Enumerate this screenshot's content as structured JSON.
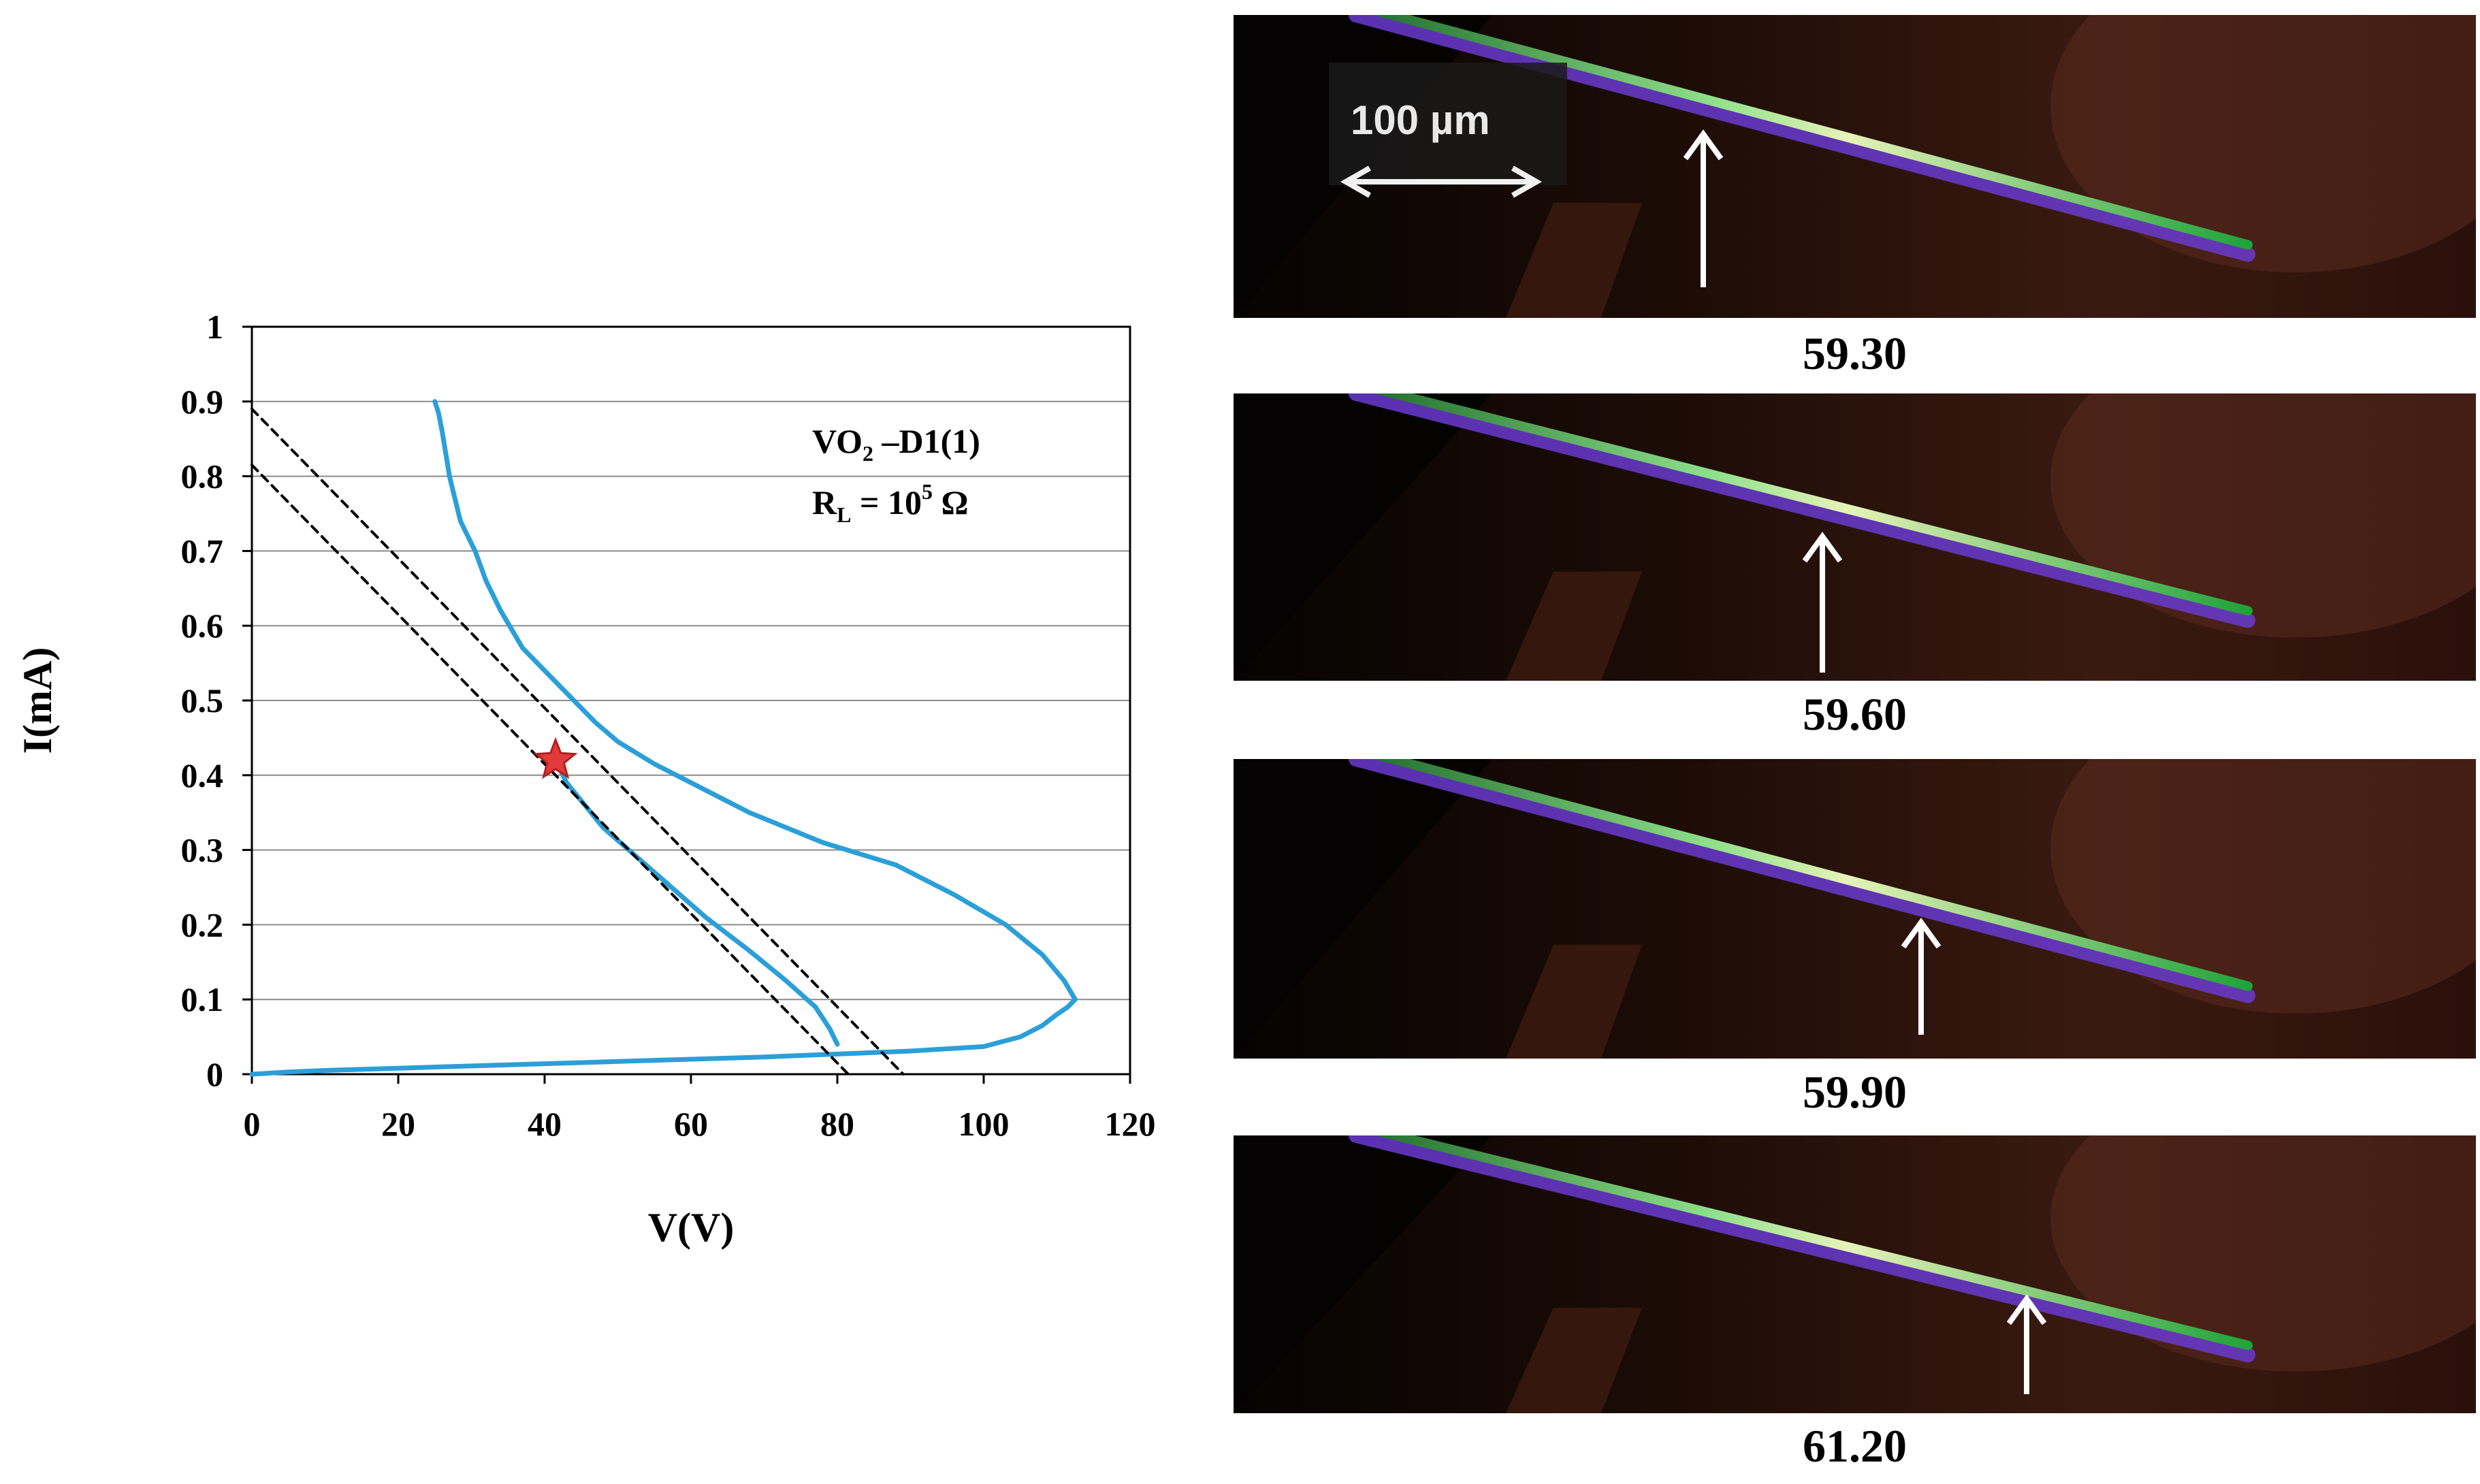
{
  "chart_data": {
    "type": "line",
    "title": "",
    "xlabel": "V(V)",
    "ylabel": "I(mA)",
    "xlim": [
      0,
      120
    ],
    "ylim": [
      0,
      1
    ],
    "x_ticks": [
      "0",
      "20",
      "40",
      "60",
      "80",
      "100",
      "120"
    ],
    "y_ticks": [
      "0",
      "0.1",
      "0.2",
      "0.3",
      "0.4",
      "0.5",
      "0.6",
      "0.7",
      "0.8",
      "0.9",
      "1"
    ],
    "grid": "horizontal",
    "annotation": {
      "line1_main": "VO",
      "line1_sub": "2",
      "line1_rest": " –D1(1)",
      "line2_main": "R",
      "line2_sub": "L",
      "line2_mid": " =  10",
      "line2_sup": "5",
      "line2_rest": " Ω"
    },
    "series": [
      {
        "name": "I-V curve",
        "color": "#2b9fd8",
        "x": [
          0,
          5,
          10,
          20,
          30,
          40,
          50,
          60,
          70,
          80,
          90,
          100,
          105,
          108,
          110,
          111.5,
          112.5,
          111,
          108,
          103,
          96,
          88,
          78,
          68,
          60,
          55,
          50,
          47,
          44,
          42,
          40,
          37,
          34,
          32,
          30.5,
          29.5,
          28.5,
          28,
          27.5,
          27,
          26.5,
          26,
          25.5,
          25
        ],
        "y": [
          0,
          0.003,
          0.005,
          0.008,
          0.011,
          0.014,
          0.017,
          0.02,
          0.023,
          0.027,
          0.031,
          0.037,
          0.05,
          0.065,
          0.08,
          0.09,
          0.1,
          0.125,
          0.16,
          0.2,
          0.24,
          0.28,
          0.31,
          0.35,
          0.39,
          0.415,
          0.445,
          0.47,
          0.5,
          0.52,
          0.54,
          0.57,
          0.62,
          0.66,
          0.7,
          0.72,
          0.74,
          0.76,
          0.78,
          0.8,
          0.83,
          0.86,
          0.885,
          0.9
        ]
      },
      {
        "name": "I-V return branch",
        "color": "#2b9fd8",
        "x": [
          41.5,
          43,
          48,
          55,
          62,
          68,
          73,
          77,
          79,
          80
        ],
        "y": [
          0.42,
          0.39,
          0.33,
          0.27,
          0.21,
          0.165,
          0.125,
          0.09,
          0.06,
          0.04
        ]
      },
      {
        "name": "Load line 1",
        "style": "dashed",
        "color": "#000000",
        "x": [
          0,
          81.5
        ],
        "y": [
          0.815,
          0
        ]
      },
      {
        "name": "Load line 2",
        "style": "dashed",
        "color": "#000000",
        "x": [
          0,
          89
        ],
        "y": [
          0.89,
          0
        ]
      }
    ],
    "marker": {
      "shape": "star",
      "x": 41.5,
      "y": 0.42,
      "fill": "#e23a3a",
      "stroke": "#b0201f"
    }
  },
  "images": [
    {
      "label": "59.30",
      "scale_bar": "100 µm"
    },
    {
      "label": "59.60"
    },
    {
      "label": "59.90"
    },
    {
      "label": "61.20"
    }
  ]
}
